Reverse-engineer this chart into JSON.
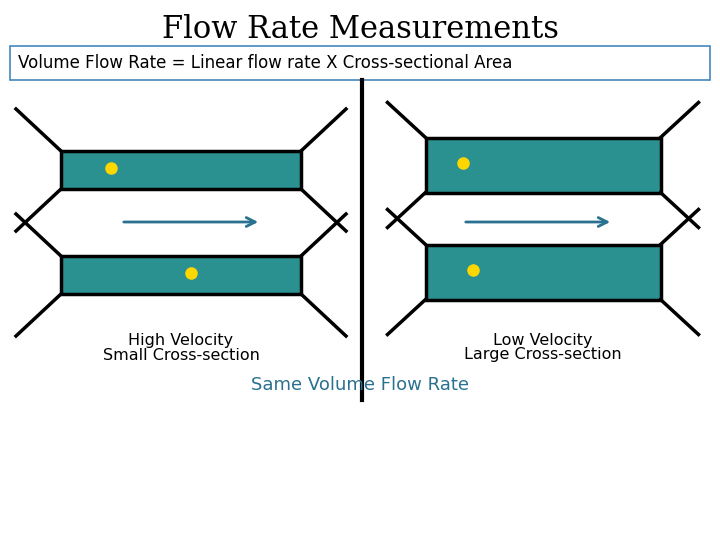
{
  "title": "Flow Rate Measurements",
  "formula": "Volume Flow Rate = Linear flow rate X Cross-sectional Area",
  "bottom_label": "Same Volume Flow Rate",
  "left_label1": "High Velocity",
  "left_label2": "Small Cross-section",
  "right_label1": "Low Velocity",
  "right_label2": "Large Cross-section",
  "teal_color": "#2A9090",
  "arrow_color": "#2A7090",
  "dot_color": "#FFD700",
  "bg_color": "#FFFFFF",
  "formula_border_color": "#4488BB"
}
